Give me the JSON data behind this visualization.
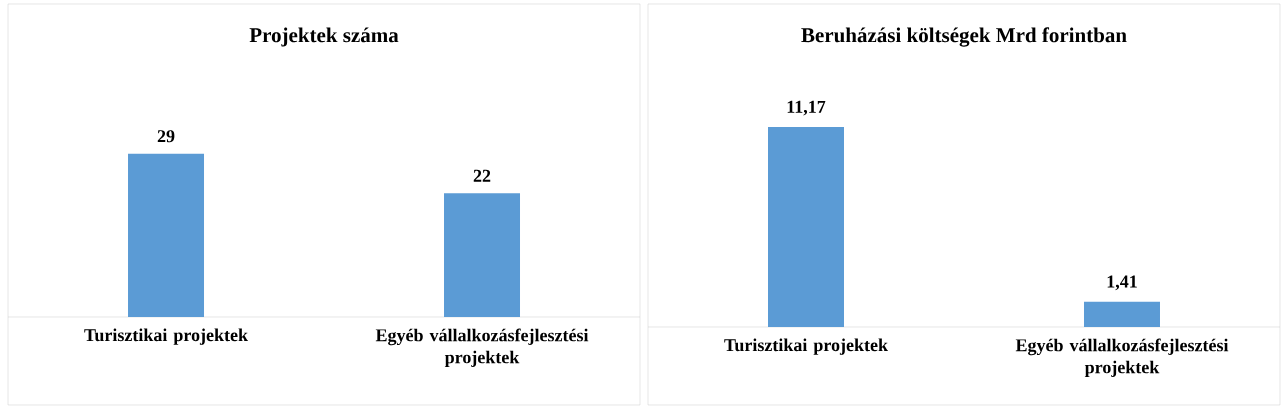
{
  "chart_data": [
    {
      "type": "bar",
      "title": "Projektek száma",
      "categories": [
        "Turisztikai projektek",
        "Egyéb vállalkozásfejlesztési projektek"
      ],
      "values": [
        29,
        22
      ],
      "color": "#5b9bd5",
      "value_labels": [
        "29",
        "22"
      ]
    },
    {
      "type": "bar",
      "title": "Beruházási költségek Mrd forintban",
      "categories": [
        "Turisztikai projektek",
        "Egyéb vállalkozásfejlesztési projektek"
      ],
      "values": [
        11.17,
        1.41
      ],
      "color": "#5b9bd5",
      "value_labels": [
        "11,17",
        "1,41"
      ]
    }
  ]
}
